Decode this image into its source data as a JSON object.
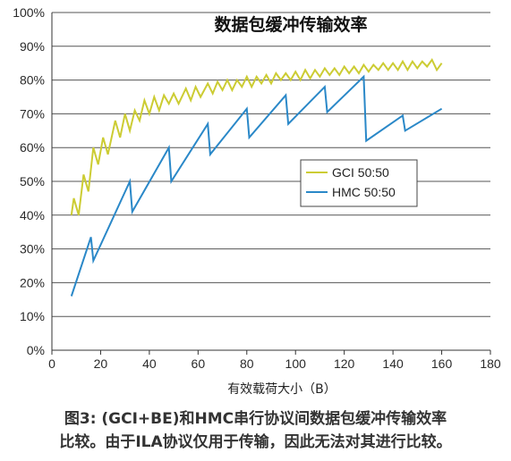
{
  "chart_data": {
    "type": "line",
    "title": "数据包缓冲传输效率",
    "xlabel": "有效载荷大小（B）",
    "ylabel": "",
    "xlim": [
      0,
      180
    ],
    "ylim": [
      0,
      100
    ],
    "x_ticks": [
      "0",
      "20",
      "40",
      "60",
      "80",
      "100",
      "120",
      "140",
      "160",
      "180"
    ],
    "y_ticks": [
      "0%",
      "10%",
      "20%",
      "30%",
      "40%",
      "50%",
      "60%",
      "70%",
      "80%",
      "90%",
      "100%"
    ],
    "grid": "horizontal",
    "legend_position": "center-right",
    "series": [
      {
        "name": "GCI 50:50",
        "color": "#cccc33",
        "points": [
          [
            8,
            40
          ],
          [
            9,
            45
          ],
          [
            11,
            40
          ],
          [
            13,
            52
          ],
          [
            15,
            47
          ],
          [
            17,
            60
          ],
          [
            19,
            55
          ],
          [
            21,
            63
          ],
          [
            23,
            58
          ],
          [
            26,
            68
          ],
          [
            28,
            63
          ],
          [
            30,
            70
          ],
          [
            32,
            65
          ],
          [
            34,
            71
          ],
          [
            36,
            68
          ],
          [
            38,
            74
          ],
          [
            40,
            70
          ],
          [
            42,
            75
          ],
          [
            44,
            71
          ],
          [
            46,
            75.5
          ],
          [
            48,
            73
          ],
          [
            50,
            76
          ],
          [
            52,
            73
          ],
          [
            55,
            77.5
          ],
          [
            57,
            74
          ],
          [
            59,
            78
          ],
          [
            61,
            75
          ],
          [
            64,
            79
          ],
          [
            66,
            76
          ],
          [
            68,
            79.5
          ],
          [
            70,
            77
          ],
          [
            72,
            80
          ],
          [
            74,
            77
          ],
          [
            76,
            80
          ],
          [
            78,
            78
          ],
          [
            80,
            81
          ],
          [
            82,
            78
          ],
          [
            84,
            81
          ],
          [
            86,
            79
          ],
          [
            88,
            81.5
          ],
          [
            90,
            79
          ],
          [
            92,
            82
          ],
          [
            94,
            80
          ],
          [
            96,
            82
          ],
          [
            98,
            80
          ],
          [
            100,
            82.5
          ],
          [
            102,
            80
          ],
          [
            104,
            83
          ],
          [
            106,
            80.5
          ],
          [
            108,
            83
          ],
          [
            110,
            81
          ],
          [
            112,
            83.5
          ],
          [
            114,
            81.5
          ],
          [
            116,
            83.5
          ],
          [
            118,
            81.5
          ],
          [
            120,
            84
          ],
          [
            122,
            82
          ],
          [
            124,
            84
          ],
          [
            126,
            82
          ],
          [
            128,
            84.5
          ],
          [
            130,
            82.5
          ],
          [
            132,
            84.5
          ],
          [
            134,
            83
          ],
          [
            136,
            85
          ],
          [
            138,
            83
          ],
          [
            140,
            85
          ],
          [
            142,
            83
          ],
          [
            144,
            85.5
          ],
          [
            146,
            83
          ],
          [
            148,
            85.5
          ],
          [
            150,
            83.5
          ],
          [
            152,
            85.5
          ],
          [
            154,
            84
          ],
          [
            156,
            86
          ],
          [
            158,
            83
          ],
          [
            160,
            85
          ]
        ]
      },
      {
        "name": "HMC 50:50",
        "color": "#2a88c8",
        "points": [
          [
            8,
            16
          ],
          [
            16,
            33.5
          ],
          [
            17,
            26.5
          ],
          [
            32,
            50
          ],
          [
            33,
            41
          ],
          [
            48,
            60
          ],
          [
            49,
            50
          ],
          [
            64,
            67
          ],
          [
            65,
            58
          ],
          [
            80,
            71.5
          ],
          [
            81,
            63
          ],
          [
            96,
            75.5
          ],
          [
            97,
            67
          ],
          [
            112,
            78
          ],
          [
            113,
            70.5
          ],
          [
            128,
            81
          ],
          [
            129,
            62
          ],
          [
            144,
            69.5
          ],
          [
            145,
            65
          ],
          [
            160,
            71.5
          ]
        ]
      }
    ]
  },
  "caption": {
    "line1": "图3: (GCI+BE)和HMC串行协议间数据包缓冲传输效率",
    "line2": "比较。由于ILA协议仅用于传输，因此无法对其进行比较。"
  }
}
